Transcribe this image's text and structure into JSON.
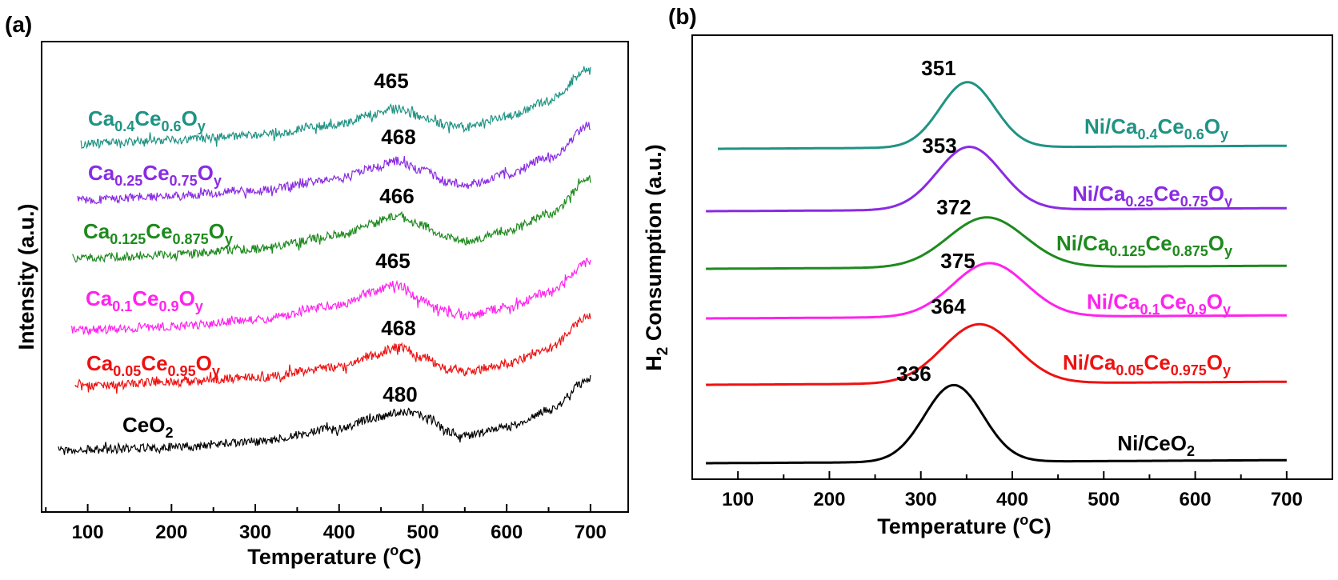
{
  "chart_data": [
    {
      "type": "line",
      "panel": "(a)",
      "xlabel": "Temperature (°C)",
      "xlabel_main": "Temperature (",
      "xlabel_sup": "o",
      "xlabel_end": "C)",
      "ylabel": "Intensity (a.u.)",
      "xlim": [
        45,
        745
      ],
      "xticks": [
        100,
        200,
        300,
        400,
        500,
        600,
        700
      ],
      "x_minor_step": 50,
      "y_ticks_shown": false,
      "grid": false,
      "noisy": true,
      "series": [
        {
          "key": "s1",
          "name": "CeO2",
          "label_parts": [
            [
              "CeO",
              ""
            ],
            [
              "2",
              "sub"
            ]
          ],
          "color": "#000000",
          "peak_label": "480",
          "x": [
            65,
            100,
            200,
            300,
            400,
            440,
            480,
            510,
            530,
            550,
            600,
            650,
            700
          ],
          "y": [
            0.1,
            0.11,
            0.14,
            0.2,
            0.34,
            0.46,
            0.53,
            0.44,
            0.3,
            0.26,
            0.36,
            0.54,
            0.88
          ]
        },
        {
          "key": "s2",
          "name": "Ca0.05Ce0.95Oy",
          "label_parts": [
            [
              "Ca",
              ""
            ],
            [
              "0.05",
              "sub"
            ],
            [
              "Ce",
              ""
            ],
            [
              "0.95",
              "sub"
            ],
            [
              "O",
              ""
            ],
            [
              "y",
              "sub"
            ]
          ],
          "color": "#ee1111",
          "peak_label": "468",
          "x": [
            85,
            100,
            200,
            300,
            400,
            440,
            468,
            500,
            530,
            550,
            600,
            650,
            700
          ],
          "y": [
            0.1,
            0.11,
            0.15,
            0.2,
            0.31,
            0.44,
            0.53,
            0.42,
            0.29,
            0.26,
            0.35,
            0.52,
            0.88
          ]
        },
        {
          "key": "s3",
          "name": "Ca0.1Ce0.9Oy",
          "label_parts": [
            [
              "Ca",
              ""
            ],
            [
              "0.1",
              "sub"
            ],
            [
              "Ce",
              ""
            ],
            [
              "0.9",
              "sub"
            ],
            [
              "O",
              ""
            ],
            [
              "y",
              "sub"
            ]
          ],
          "color": "#ff22ee",
          "peak_label": "465",
          "x": [
            80,
            100,
            200,
            300,
            400,
            440,
            465,
            500,
            530,
            550,
            600,
            650,
            700
          ],
          "y": [
            0.1,
            0.11,
            0.15,
            0.22,
            0.38,
            0.52,
            0.6,
            0.44,
            0.3,
            0.26,
            0.35,
            0.52,
            0.85
          ]
        },
        {
          "key": "s4",
          "name": "Ca0.125Ce0.875Oy",
          "label_parts": [
            [
              "Ca",
              ""
            ],
            [
              "0.125",
              "sub"
            ],
            [
              "Ce",
              ""
            ],
            [
              "0.875",
              "sub"
            ],
            [
              "O",
              ""
            ],
            [
              "y",
              "sub"
            ]
          ],
          "color": "#1e8a1e",
          "peak_label": "466",
          "x": [
            82,
            100,
            200,
            300,
            400,
            440,
            466,
            500,
            530,
            550,
            600,
            650,
            700
          ],
          "y": [
            0.1,
            0.11,
            0.14,
            0.2,
            0.34,
            0.46,
            0.55,
            0.44,
            0.32,
            0.28,
            0.38,
            0.56,
            0.92
          ]
        },
        {
          "key": "s5",
          "name": "Ca0.25Ce0.75Oy",
          "label_parts": [
            [
              "Ca",
              ""
            ],
            [
              "0.25",
              "sub"
            ],
            [
              "Ce",
              ""
            ],
            [
              "0.75",
              "sub"
            ],
            [
              "O",
              ""
            ],
            [
              "y",
              "sub"
            ]
          ],
          "color": "#8a2be2",
          "peak_label": "468",
          "x": [
            88,
            100,
            200,
            300,
            400,
            440,
            468,
            500,
            530,
            550,
            600,
            650,
            700
          ],
          "y": [
            0.1,
            0.11,
            0.15,
            0.21,
            0.33,
            0.45,
            0.53,
            0.42,
            0.3,
            0.27,
            0.38,
            0.56,
            0.92
          ]
        },
        {
          "key": "s6",
          "name": "Ca0.4Ce0.6Oy",
          "label_parts": [
            [
              "Ca",
              ""
            ],
            [
              "0.4",
              "sub"
            ],
            [
              "Ce",
              ""
            ],
            [
              "0.6",
              "sub"
            ],
            [
              "O",
              ""
            ],
            [
              "y",
              "sub"
            ]
          ],
          "color": "#1f9384",
          "peak_label": "465",
          "x": [
            92,
            100,
            200,
            300,
            400,
            440,
            465,
            500,
            530,
            550,
            600,
            650,
            700
          ],
          "y": [
            0.1,
            0.11,
            0.15,
            0.21,
            0.33,
            0.45,
            0.52,
            0.42,
            0.32,
            0.3,
            0.42,
            0.6,
            0.98
          ]
        }
      ]
    },
    {
      "type": "line",
      "panel": "(b)",
      "xlabel": "Temperature (°C)",
      "xlabel_main": "Temperature (",
      "xlabel_sup": "o",
      "xlabel_end": "C)",
      "ylabel": "H2 Consumption (a.u.)",
      "ylabel_parts": [
        [
          "H",
          ""
        ],
        [
          "2",
          "sub"
        ],
        [
          " Consumption (a.u.)",
          ""
        ]
      ],
      "xlim": [
        50,
        750
      ],
      "xticks": [
        100,
        200,
        300,
        400,
        500,
        600,
        700
      ],
      "x_minor_step": 50,
      "y_ticks_shown": false,
      "grid": false,
      "noisy": false,
      "series": [
        {
          "key": "t1",
          "name": "Ni/CeO2",
          "label_parts": [
            [
              "Ni/CeO",
              ""
            ],
            [
              "2",
              "sub"
            ]
          ],
          "color": "#000000",
          "peak_label": "336",
          "x0": 65,
          "x1": 700,
          "peak_x": 336,
          "peak_height": 1.0,
          "sigma": 32
        },
        {
          "key": "t2",
          "name": "Ni/Ca0.05Ce0.975Oy",
          "label_parts": [
            [
              "Ni/Ca",
              ""
            ],
            [
              "0.05",
              "sub"
            ],
            [
              "Ce",
              ""
            ],
            [
              "0.975",
              "sub"
            ],
            [
              "O",
              ""
            ],
            [
              "y",
              "sub"
            ]
          ],
          "color": "#ee1111",
          "peak_label": "364",
          "x0": 65,
          "x1": 700,
          "peak_x": 364,
          "peak_height": 0.77,
          "sigma": 40
        },
        {
          "key": "t3",
          "name": "Ni/Ca0.1Ce0.9Oy",
          "label_parts": [
            [
              "Ni/Ca",
              ""
            ],
            [
              "0.1",
              "sub"
            ],
            [
              "Ce",
              ""
            ],
            [
              "0.9",
              "sub"
            ],
            [
              "O",
              ""
            ],
            [
              "y",
              "sub"
            ]
          ],
          "color": "#ff22ee",
          "peak_label": "375",
          "x0": 65,
          "x1": 700,
          "peak_x": 375,
          "peak_height": 0.7,
          "sigma": 40
        },
        {
          "key": "t4",
          "name": "Ni/Ca0.125Ce0.875Oy",
          "label_parts": [
            [
              "Ni/Ca",
              ""
            ],
            [
              "0.125",
              "sub"
            ],
            [
              "Ce",
              ""
            ],
            [
              "0.875",
              "sub"
            ],
            [
              "O",
              ""
            ],
            [
              "y",
              "sub"
            ]
          ],
          "color": "#1e8a1e",
          "peak_label": "372",
          "x0": 65,
          "x1": 700,
          "peak_x": 372,
          "peak_height": 0.65,
          "sigma": 42
        },
        {
          "key": "t5",
          "name": "Ni/Ca0.25Ce0.75Oy",
          "label_parts": [
            [
              "Ni/Ca",
              ""
            ],
            [
              "0.25",
              "sub"
            ],
            [
              "Ce",
              ""
            ],
            [
              "0.75",
              "sub"
            ],
            [
              "O",
              ""
            ],
            [
              "y",
              "sub"
            ]
          ],
          "color": "#8a2be2",
          "peak_label": "353",
          "x0": 65,
          "x1": 700,
          "peak_x": 353,
          "peak_height": 0.82,
          "sigma": 35
        },
        {
          "key": "t6",
          "name": "Ni/Ca0.4Ce0.6Oy",
          "label_parts": [
            [
              "Ni/Ca",
              ""
            ],
            [
              "0.4",
              "sub"
            ],
            [
              "Ce",
              ""
            ],
            [
              "0.6",
              "sub"
            ],
            [
              "O",
              ""
            ],
            [
              "y",
              "sub"
            ]
          ],
          "color": "#1f9384",
          "peak_label": "351",
          "x0": 78,
          "x1": 700,
          "peak_x": 351,
          "peak_height": 0.85,
          "sigma": 30
        }
      ]
    }
  ]
}
